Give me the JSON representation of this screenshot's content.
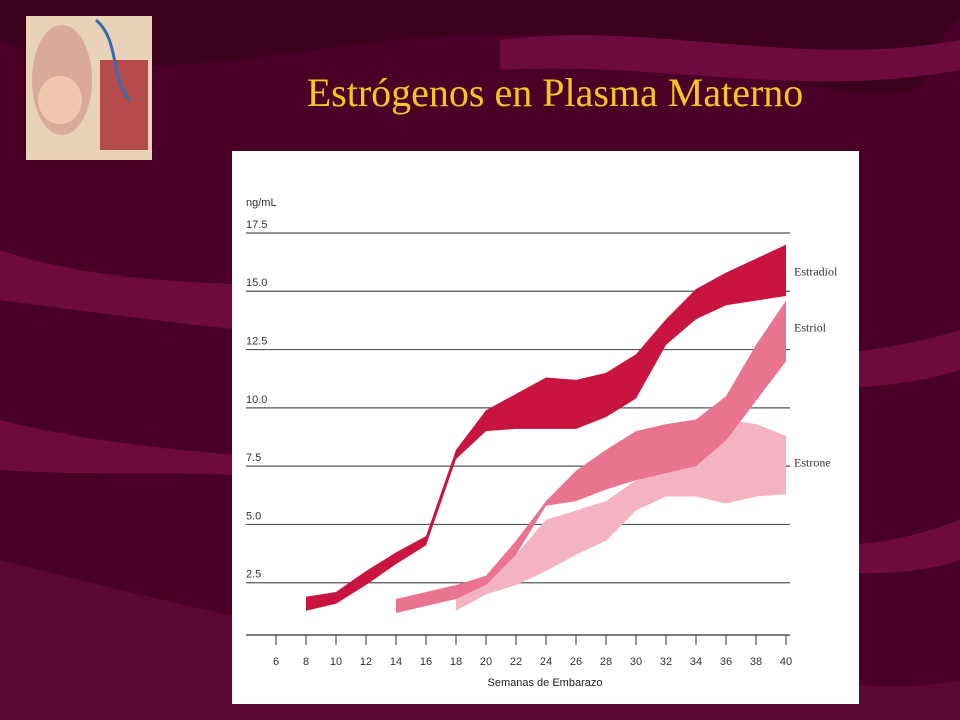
{
  "chart_data": {
    "type": "band",
    "title": "Estrógenos en Plasma Materno",
    "y_label": "ng/mL",
    "x_label": "Semanas de Embarazo",
    "xlim": [
      4,
      40.5
    ],
    "xticks": [
      6,
      8,
      10,
      12,
      14,
      16,
      18,
      20,
      22,
      24,
      26,
      28,
      30,
      32,
      34,
      36,
      38,
      40
    ],
    "ylim": [
      0,
      17.5
    ],
    "yticks": [
      2.5,
      {
        "value": 5,
        "label": "5.0"
      },
      7.5,
      {
        "value": 10,
        "label": "10.0"
      },
      12.5,
      {
        "value": 15,
        "label": "15.0"
      },
      17.5
    ],
    "grid": true,
    "series": [
      {
        "name": "Estrone",
        "color": "#f4b3c2",
        "x": [
          18,
          20,
          22,
          24,
          26,
          28,
          30,
          32,
          34,
          36,
          38,
          40
        ],
        "high": [
          1.8,
          2.6,
          3.7,
          5.2,
          5.6,
          6.0,
          6.9,
          7.8,
          8.2,
          9.5,
          9.3,
          8.8
        ],
        "low": [
          1.3,
          2.0,
          2.4,
          3.0,
          3.7,
          4.3,
          5.6,
          6.2,
          6.2,
          5.9,
          6.2,
          6.3
        ]
      },
      {
        "name": "Estriol",
        "color": "#ea7390",
        "x": [
          14,
          16,
          18,
          20,
          22,
          24,
          26,
          28,
          30,
          32,
          34,
          36,
          38,
          40
        ],
        "high": [
          1.8,
          2.1,
          2.4,
          2.8,
          4.3,
          6.0,
          7.3,
          8.2,
          9.0,
          9.3,
          9.5,
          10.5,
          12.7,
          14.6
        ],
        "low": [
          1.2,
          1.5,
          1.8,
          2.4,
          3.7,
          5.8,
          6.0,
          6.5,
          6.9,
          7.2,
          7.5,
          8.6,
          10.3,
          12.0
        ]
      },
      {
        "name": "Estradiol",
        "color": "#c8143e",
        "x": [
          8,
          10,
          12,
          14,
          16,
          18,
          20,
          22,
          24,
          26,
          28,
          30,
          32,
          34,
          36,
          38,
          40
        ],
        "high": [
          1.9,
          2.1,
          3.0,
          3.8,
          4.5,
          8.2,
          9.9,
          10.6,
          11.3,
          11.2,
          11.5,
          12.3,
          13.8,
          15.1,
          15.8,
          16.4,
          17.0
        ],
        "low": [
          1.3,
          1.6,
          2.4,
          3.3,
          4.1,
          7.8,
          9.0,
          9.1,
          9.1,
          9.1,
          9.6,
          10.4,
          12.7,
          13.8,
          14.4,
          14.6,
          14.8
        ]
      }
    ]
  }
}
